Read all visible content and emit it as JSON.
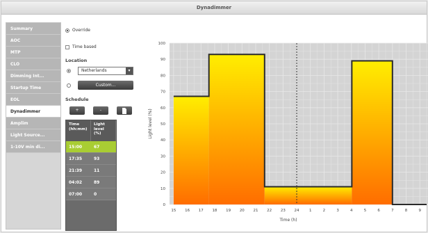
{
  "window": {
    "title": "Dynadimmer"
  },
  "sidebar": {
    "items": [
      {
        "label": "Summary",
        "active": false
      },
      {
        "label": "AOC",
        "active": false
      },
      {
        "label": "MTP",
        "active": false
      },
      {
        "label": "CLO",
        "active": false
      },
      {
        "label": "Dimming Int...",
        "active": false
      },
      {
        "label": "Startup Time",
        "active": false
      },
      {
        "label": "EOL",
        "active": false
      },
      {
        "label": "Dynadimmer",
        "active": true
      },
      {
        "label": "Amplim",
        "active": false
      },
      {
        "label": "Light Source...",
        "active": false
      },
      {
        "label": "1-10V min di...",
        "active": false
      }
    ]
  },
  "controls": {
    "override_label": "Override",
    "time_based_label": "Time based",
    "location_label": "Location",
    "location_value": "Netherlands",
    "custom_label": "Custom...",
    "schedule_label": "Schedule",
    "add_label": "+",
    "remove_label": "-",
    "copy_icon": "document-icon"
  },
  "schedule": {
    "headers": [
      "Time (hh:mm)",
      "Light level (%)"
    ],
    "rows": [
      {
        "time": "15:00",
        "level": "67",
        "selected": true
      },
      {
        "time": "17:35",
        "level": "93",
        "selected": false
      },
      {
        "time": "21:39",
        "level": "11",
        "selected": false
      },
      {
        "time": "04:02",
        "level": "89",
        "selected": false
      },
      {
        "time": "07:00",
        "level": "0",
        "selected": false
      }
    ]
  },
  "chart_data": {
    "type": "area",
    "xlabel": "Time (h)",
    "ylabel": "Light level (%)",
    "ylim": [
      0,
      100
    ],
    "y_ticks": [
      "0",
      "10",
      "20",
      "30",
      "40",
      "50",
      "60",
      "70",
      "80",
      "90",
      "100"
    ],
    "x_ticks": [
      "15",
      "16",
      "17",
      "18",
      "19",
      "20",
      "21",
      "22",
      "23",
      "24",
      "1",
      "2",
      "3",
      "4",
      "5",
      "6",
      "7",
      "8",
      "9"
    ],
    "series": [
      {
        "steps": [
          {
            "from": 15.0,
            "to": 17.58,
            "value": 67
          },
          {
            "from": 17.58,
            "to": 21.65,
            "value": 93
          },
          {
            "from": 21.65,
            "to": 28.03,
            "value": 11
          },
          {
            "from": 28.03,
            "to": 31.0,
            "value": 89
          },
          {
            "from": 31.0,
            "to": 33.5,
            "value": 0
          }
        ]
      }
    ],
    "marker_line": 24,
    "grid": true,
    "colors": {
      "fill_top": "#ffee00",
      "fill_bottom": "#ff6d00",
      "plot_bg": "#d4d4d4",
      "line": "#2a2a2a",
      "accent": "#a9cd33"
    }
  }
}
